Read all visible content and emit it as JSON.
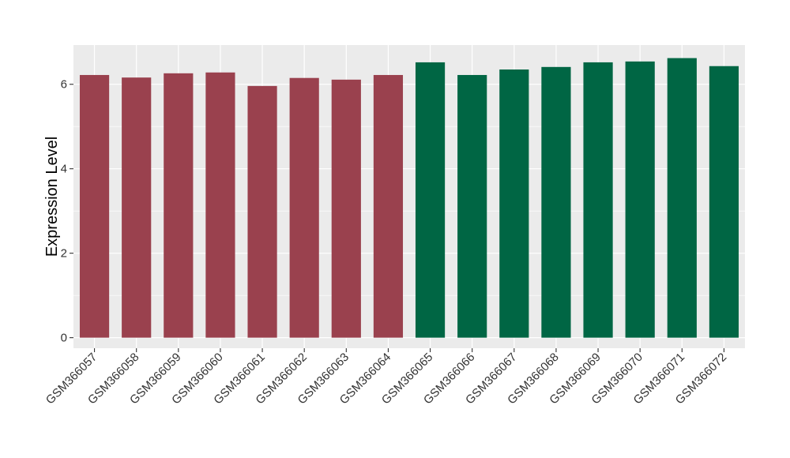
{
  "chart_data": {
    "type": "bar",
    "title": "",
    "xlabel": "",
    "ylabel": "Expression Level",
    "ylim": [
      -0.25,
      6.93
    ],
    "yticks": [
      0,
      2,
      4,
      6
    ],
    "grid": true,
    "legend": "none",
    "categories": [
      "GSM366057",
      "GSM366058",
      "GSM366059",
      "GSM366060",
      "GSM366061",
      "GSM366062",
      "GSM366063",
      "GSM366064",
      "GSM366065",
      "GSM366066",
      "GSM366067",
      "GSM366068",
      "GSM366069",
      "GSM366070",
      "GSM366071",
      "GSM366072"
    ],
    "values": [
      6.22,
      6.16,
      6.26,
      6.28,
      5.96,
      6.15,
      6.11,
      6.22,
      6.52,
      6.22,
      6.35,
      6.41,
      6.52,
      6.54,
      6.62,
      6.43
    ],
    "bar_colors": [
      "#9a414e",
      "#9a414e",
      "#9a414e",
      "#9a414e",
      "#9a414e",
      "#9a414e",
      "#9a414e",
      "#9a414e",
      "#006644",
      "#006644",
      "#006644",
      "#006644",
      "#006644",
      "#006644",
      "#006644",
      "#006644"
    ],
    "panel_background": "#ebebeb",
    "grid_color": "#ffffff"
  }
}
